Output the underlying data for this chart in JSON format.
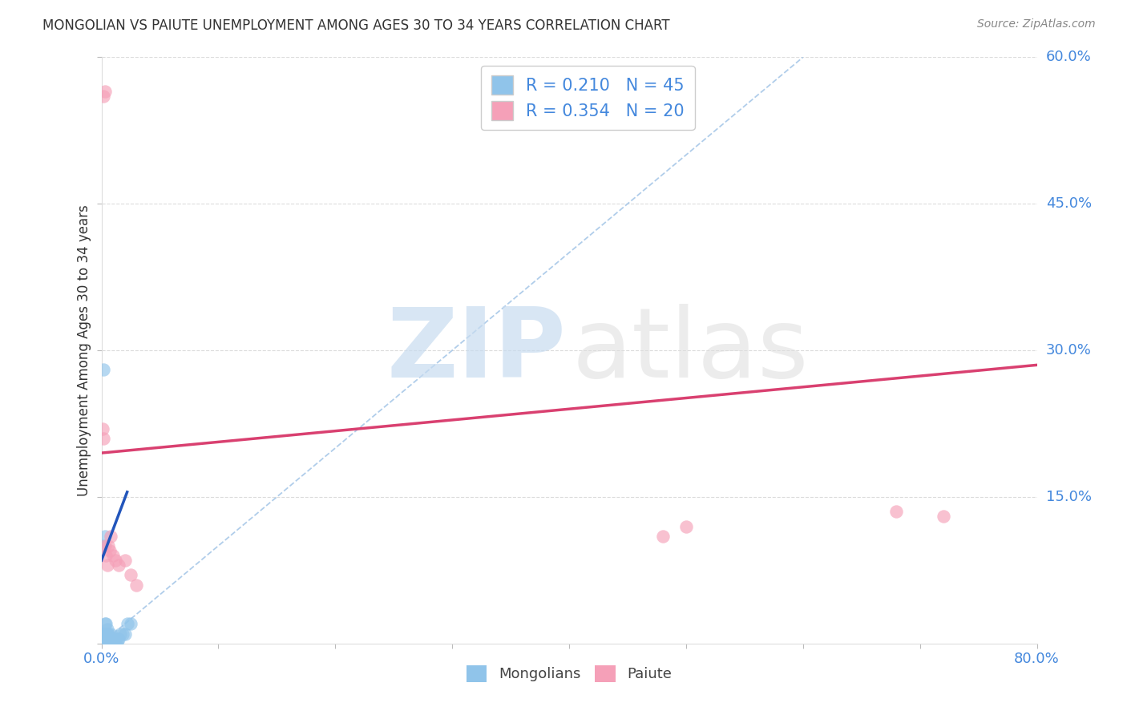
{
  "title": "MONGOLIAN VS PAIUTE UNEMPLOYMENT AMONG AGES 30 TO 34 YEARS CORRELATION CHART",
  "source": "Source: ZipAtlas.com",
  "ylabel": "Unemployment Among Ages 30 to 34 years",
  "xlim": [
    0.0,
    0.8
  ],
  "ylim": [
    0.0,
    0.6
  ],
  "xtick_vals": [
    0.0,
    0.1,
    0.2,
    0.3,
    0.4,
    0.5,
    0.6,
    0.7,
    0.8
  ],
  "xtick_labels": [
    "0.0%",
    "",
    "",
    "",
    "",
    "",
    "",
    "",
    "80.0%"
  ],
  "ytick_vals": [
    0.0,
    0.15,
    0.3,
    0.45,
    0.6
  ],
  "ytick_labels": [
    "",
    "15.0%",
    "30.0%",
    "45.0%",
    "60.0%"
  ],
  "mongolian_color": "#90C4EA",
  "paiute_color": "#F5A0B8",
  "trend_mongolian_color": "#2255BB",
  "trend_paiute_color": "#D94070",
  "diag_line_color": "#A8C8E8",
  "grid_color": "#CCCCCC",
  "tick_color": "#4488DD",
  "background_color": "#FFFFFF",
  "title_color": "#333333",
  "source_color": "#888888",
  "ylabel_color": "#333333",
  "watermark_zip_color": "#C8DCF0",
  "watermark_atlas_color": "#DEDEDE",
  "mongolian_R": 0.21,
  "mongolian_N": 45,
  "paiute_R": 0.354,
  "paiute_N": 20,
  "mongo_x": [
    0.001,
    0.001,
    0.001,
    0.002,
    0.002,
    0.002,
    0.002,
    0.002,
    0.003,
    0.003,
    0.003,
    0.003,
    0.003,
    0.004,
    0.004,
    0.004,
    0.004,
    0.005,
    0.005,
    0.005,
    0.005,
    0.006,
    0.006,
    0.006,
    0.007,
    0.007,
    0.008,
    0.008,
    0.008,
    0.009,
    0.009,
    0.01,
    0.01,
    0.011,
    0.012,
    0.013,
    0.014,
    0.015,
    0.016,
    0.018,
    0.02,
    0.022,
    0.025,
    0.002,
    0.003
  ],
  "mongo_y": [
    0.0,
    0.005,
    0.01,
    0.0,
    0.0,
    0.005,
    0.01,
    0.28,
    0.0,
    0.0,
    0.005,
    0.01,
    0.02,
    0.0,
    0.005,
    0.01,
    0.02,
    0.0,
    0.005,
    0.01,
    0.015,
    0.0,
    0.005,
    0.01,
    0.0,
    0.005,
    0.0,
    0.005,
    0.01,
    0.0,
    0.005,
    0.0,
    0.005,
    0.0,
    0.005,
    0.0,
    0.005,
    0.005,
    0.01,
    0.01,
    0.01,
    0.02,
    0.02,
    0.1,
    0.11
  ],
  "paiute_x": [
    0.001,
    0.002,
    0.003,
    0.004,
    0.005,
    0.006,
    0.007,
    0.008,
    0.01,
    0.012,
    0.015,
    0.02,
    0.025,
    0.03,
    0.002,
    0.003,
    0.48,
    0.5,
    0.68,
    0.72
  ],
  "paiute_y": [
    0.22,
    0.21,
    0.1,
    0.09,
    0.08,
    0.1,
    0.095,
    0.11,
    0.09,
    0.085,
    0.08,
    0.085,
    0.07,
    0.06,
    0.56,
    0.565,
    0.11,
    0.12,
    0.135,
    0.13
  ],
  "paiute_trend_x0": 0.0,
  "paiute_trend_x1": 0.8,
  "paiute_trend_y0": 0.195,
  "paiute_trend_y1": 0.285,
  "mongo_trend_x0": 0.0,
  "mongo_trend_x1": 0.022,
  "mongo_trend_y0": 0.085,
  "mongo_trend_y1": 0.155
}
